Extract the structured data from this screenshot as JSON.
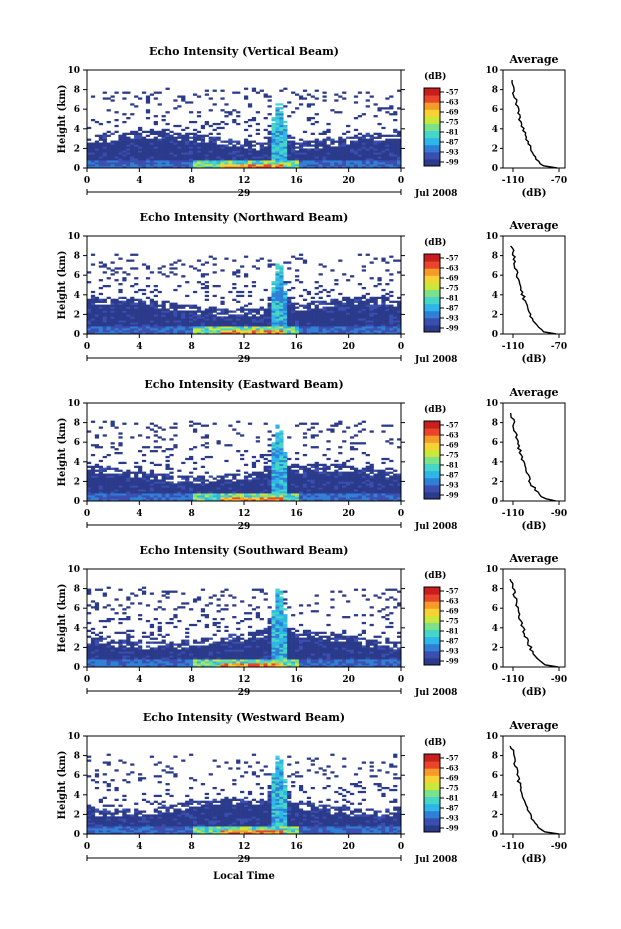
{
  "figure": {
    "colorbar_unit": "(dB)",
    "colorbar_ticks": [
      "-57",
      "-63",
      "-69",
      "-75",
      "-81",
      "-87",
      "-93",
      "-99"
    ],
    "y_label": "Height (km)",
    "y_ticks": [
      "0",
      "2",
      "4",
      "6",
      "8",
      "10"
    ],
    "x_ticks": [
      "0",
      "4",
      "8",
      "12",
      "16",
      "20",
      "0"
    ],
    "date_month_year": "Jul 2008",
    "x_axis_title": "Local Time",
    "profile_title": "Average",
    "profile_xlabel": "(dB)",
    "colorscale": [
      "#2b3a8a",
      "#3a4eb0",
      "#2f7fd6",
      "#2fb6e8",
      "#45d6c8",
      "#7de08a",
      "#c9e83a",
      "#f7d234",
      "#f69a2a",
      "#e8452a",
      "#c81e1e"
    ]
  },
  "chart_data": [
    {
      "type": "heatmap",
      "title": "Echo Intensity (Vertical Beam)",
      "day_label": "29",
      "x": [
        0,
        24
      ],
      "ylim": [
        0,
        10
      ],
      "profile": {
        "values": [
          -98,
          -108,
          -109,
          -110,
          -111,
          -112
        ],
        "xticks": [
          "-110",
          "-70"
        ]
      }
    },
    {
      "type": "heatmap",
      "title": "Echo Intensity (Northward Beam)",
      "day_label": "29",
      "x": [
        0,
        24
      ],
      "ylim": [
        0,
        10
      ],
      "profile": {
        "values": [
          -90,
          -104,
          -108,
          -109,
          -110,
          -112
        ],
        "xticks": [
          "-110",
          "-70"
        ]
      }
    },
    {
      "type": "heatmap",
      "title": "Echo Intensity (Eastward Beam)",
      "day_label": "29",
      "x": [
        0,
        24
      ],
      "ylim": [
        0,
        10
      ],
      "profile": {
        "values": [
          -96,
          -104,
          -107,
          -108,
          -109,
          -111
        ],
        "xticks": [
          "-110",
          "-90"
        ]
      }
    },
    {
      "type": "heatmap",
      "title": "Echo Intensity (Southward Beam)",
      "day_label": "29",
      "x": [
        0,
        24
      ],
      "ylim": [
        0,
        10
      ],
      "profile": {
        "values": [
          -96,
          -104,
          -107,
          -108,
          -109,
          -111
        ],
        "xticks": [
          "-110",
          "-90"
        ]
      }
    },
    {
      "type": "heatmap",
      "title": "Echo Intensity (Westward Beam)",
      "day_label": "29",
      "x": [
        0,
        24
      ],
      "ylim": [
        0,
        10
      ],
      "profile": {
        "values": [
          -96,
          -104,
          -107,
          -108,
          -109,
          -111
        ],
        "xticks": [
          "-110",
          "-90"
        ]
      }
    }
  ]
}
